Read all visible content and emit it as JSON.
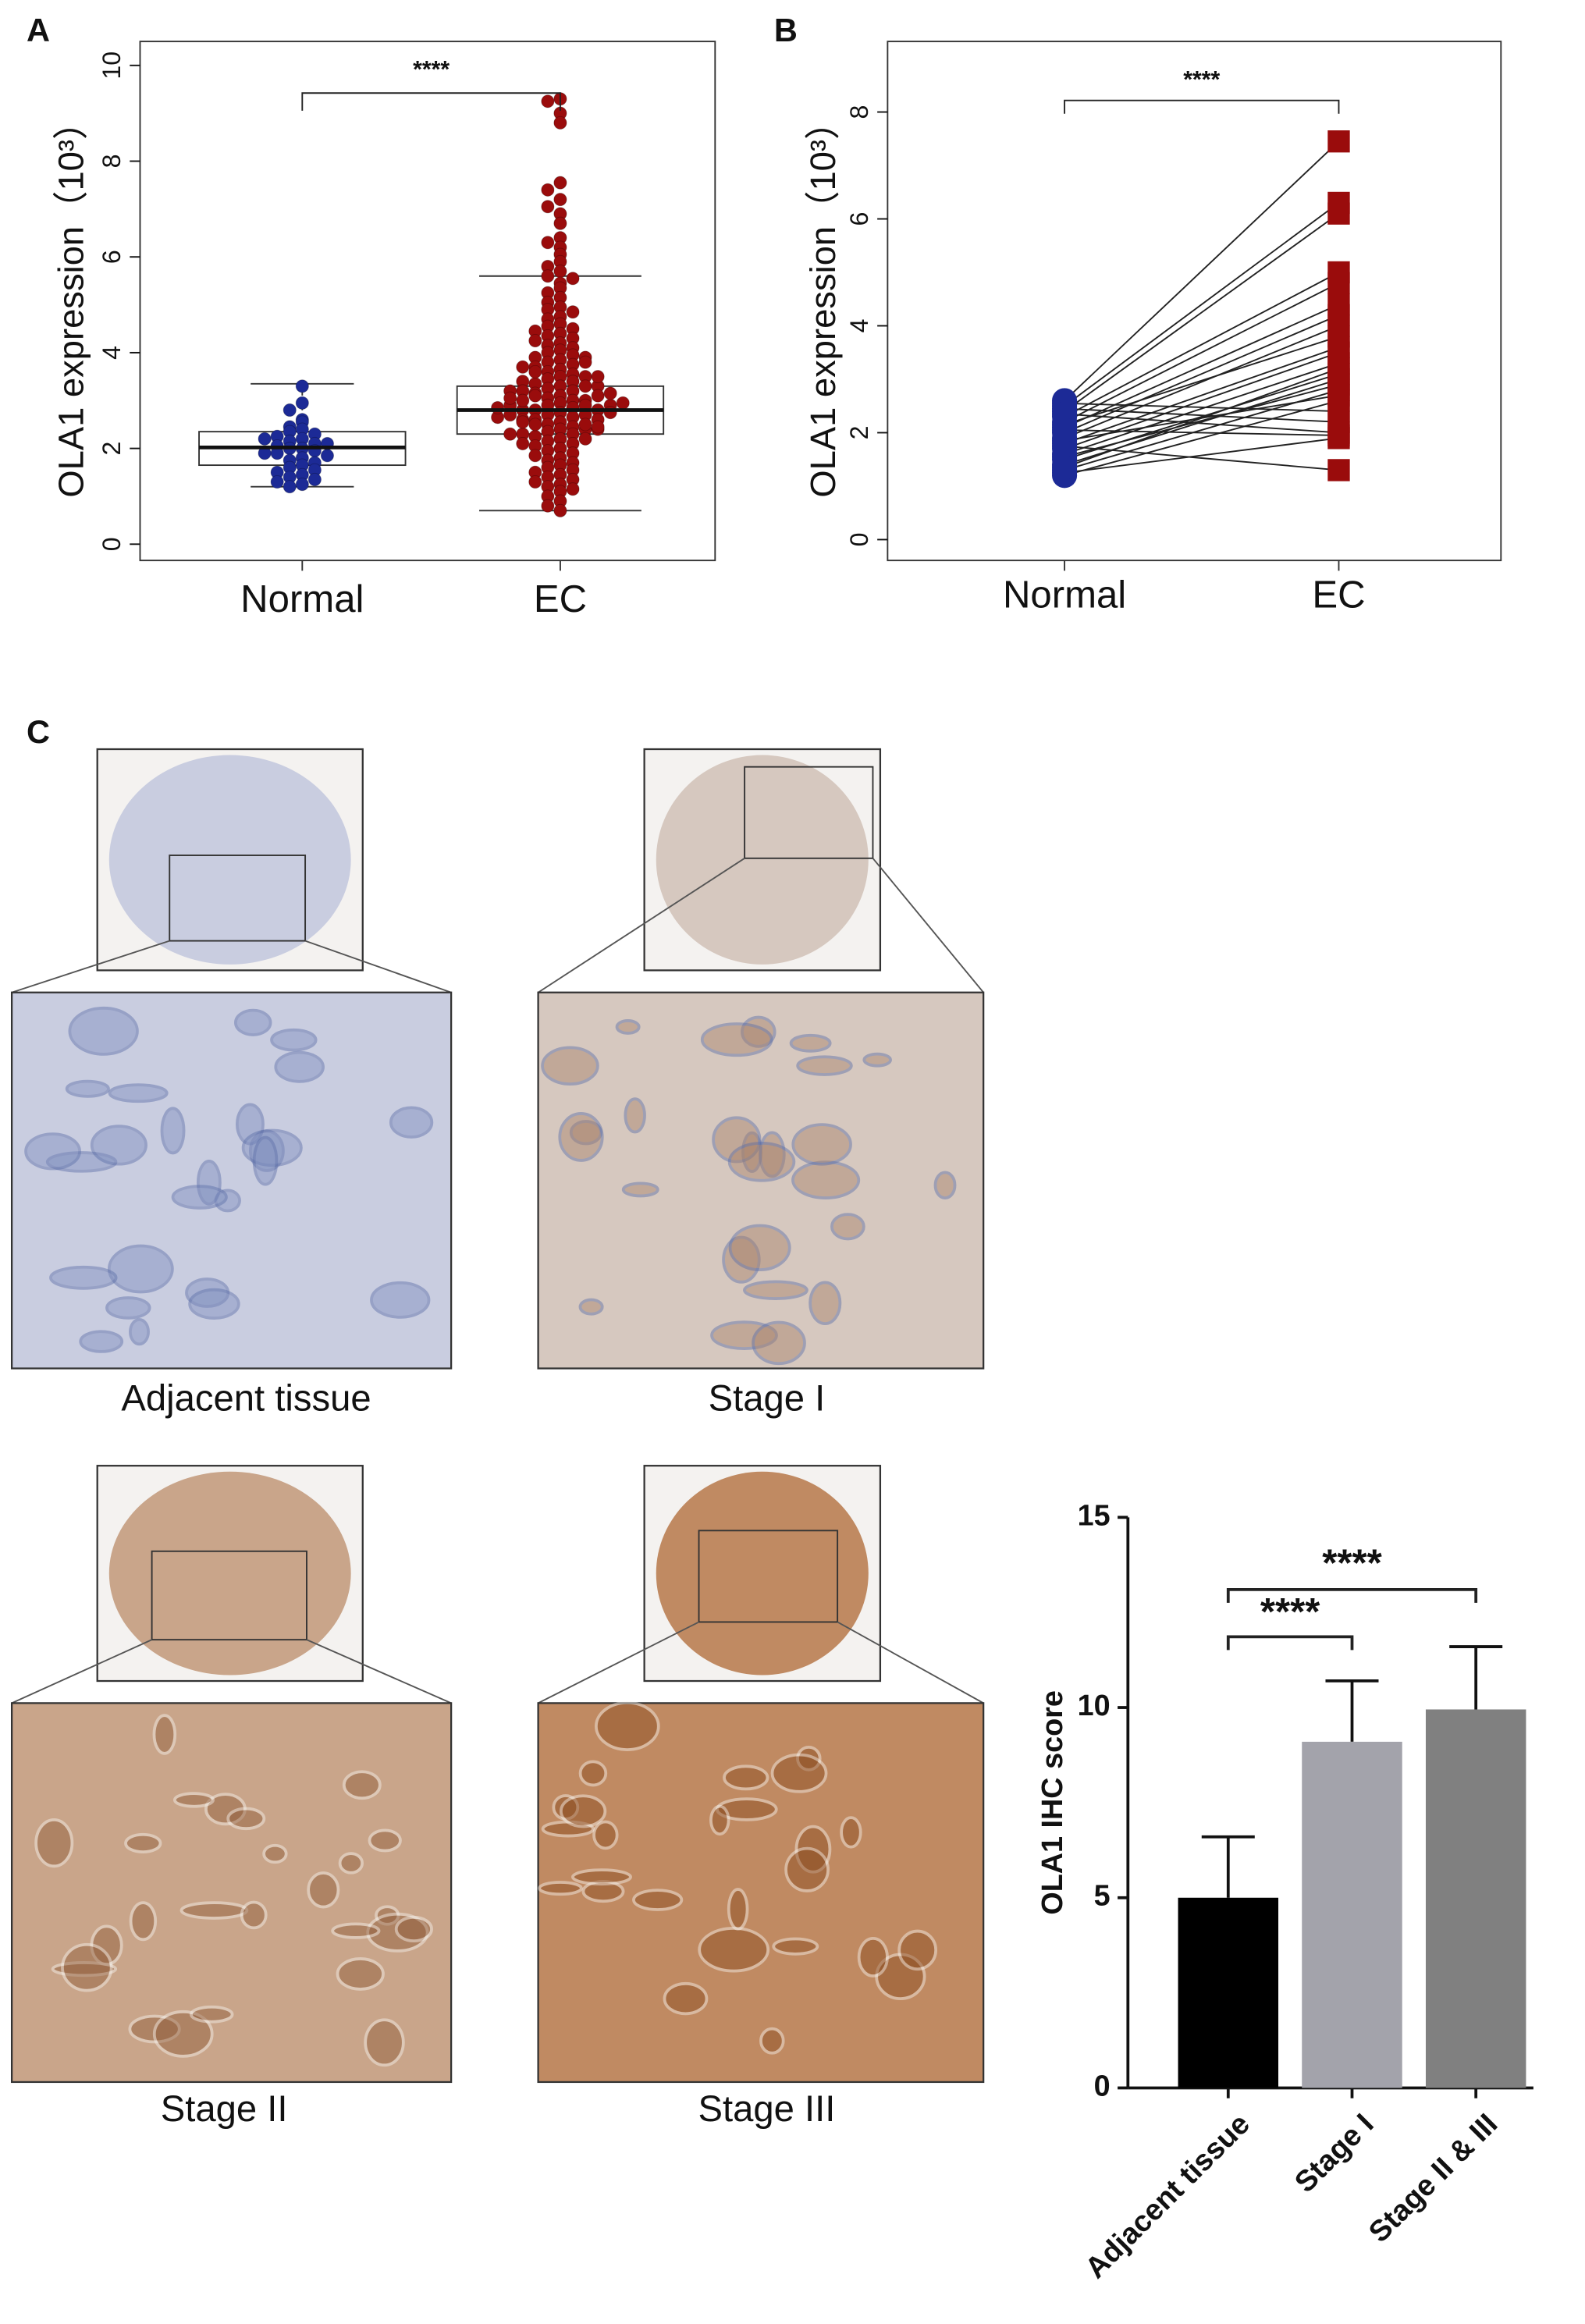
{
  "panels": [
    "A",
    "B",
    "C"
  ],
  "chart_data": [
    {
      "type": "box",
      "ylabel": "OLA1 expression（10³）",
      "categories": [
        "Normal",
        "EC"
      ],
      "colors": [
        "#1c2a96",
        "#9a0c0c"
      ],
      "box": [
        {
          "whislo": 1.2,
          "q1": 1.65,
          "med": 2.02,
          "q3": 2.35,
          "whishi": 3.35
        },
        {
          "whislo": 0.7,
          "q1": 2.3,
          "med": 2.8,
          "q3": 3.3,
          "whishi": 5.6
        }
      ],
      "points": [
        [
          3.3,
          2.95,
          2.8,
          2.6,
          2.55,
          2.45,
          2.4,
          2.35,
          2.3,
          2.25,
          2.2,
          2.15,
          2.1,
          2.05,
          2.0,
          2.0,
          1.95,
          1.9,
          1.85,
          1.8,
          1.75,
          1.7,
          1.65,
          1.6,
          1.55,
          1.5,
          1.45,
          1.4,
          1.35,
          1.3,
          1.25,
          1.2,
          2.1,
          1.9,
          2.2
        ],
        [
          9.3,
          9.25,
          9.0,
          8.8,
          7.55,
          7.4,
          7.2,
          7.05,
          6.9,
          6.7,
          6.4,
          6.3,
          6.2,
          6.05,
          5.9,
          5.8,
          5.7,
          5.6,
          5.55,
          5.45,
          5.35,
          5.25,
          5.15,
          5.05,
          4.95,
          4.9,
          4.85,
          4.75,
          4.7,
          4.6,
          4.55,
          4.5,
          4.45,
          4.4,
          4.35,
          4.3,
          4.25,
          4.2,
          4.15,
          4.1,
          4.05,
          4.0,
          3.95,
          3.9,
          3.85,
          3.8,
          3.75,
          3.7,
          3.65,
          3.6,
          3.55,
          3.5,
          3.45,
          3.4,
          3.35,
          3.3,
          3.25,
          3.2,
          3.15,
          3.1,
          3.05,
          3.0,
          2.95,
          2.9,
          2.85,
          2.8,
          2.75,
          2.7,
          2.65,
          2.6,
          2.55,
          2.5,
          2.45,
          2.4,
          2.35,
          2.3,
          2.25,
          2.2,
          2.15,
          2.1,
          2.05,
          2.0,
          1.95,
          1.9,
          1.85,
          1.8,
          1.75,
          1.7,
          1.65,
          1.6,
          1.55,
          1.5,
          1.45,
          1.4,
          1.35,
          1.3,
          1.25,
          1.2,
          1.15,
          1.1,
          1.0,
          0.9,
          0.8,
          0.7,
          3.9,
          3.8,
          3.6,
          3.5,
          3.4,
          3.3,
          3.2,
          3.1,
          3.0,
          2.9,
          2.8,
          2.7,
          2.6,
          2.5,
          2.4,
          2.3,
          2.2,
          2.1,
          3.7,
          3.3,
          3.0,
          2.8,
          2.6,
          2.4,
          3.5,
          3.2,
          2.9,
          2.7,
          2.5,
          2.3,
          3.1,
          2.9,
          2.75,
          2.65,
          2.55,
          2.85,
          3.05,
          3.15,
          2.95,
          2.45
        ]
      ],
      "ylim": [
        -0.34,
        10.5
      ],
      "yticks": [
        0,
        2,
        4,
        6,
        8,
        10
      ],
      "annotation": "****"
    },
    {
      "type": "paired",
      "ylabel": "OLA1 expression（10³）",
      "categories": [
        "Normal",
        "EC"
      ],
      "colors": [
        "#1c2a96",
        "#9a0c0c"
      ],
      "pairs": [
        [
          2.6,
          7.45
        ],
        [
          2.5,
          6.3
        ],
        [
          2.4,
          6.1
        ],
        [
          2.3,
          5.0
        ],
        [
          2.2,
          4.8
        ],
        [
          2.1,
          4.4
        ],
        [
          2.0,
          4.2
        ],
        [
          1.9,
          4.0
        ],
        [
          1.8,
          3.6
        ],
        [
          1.7,
          3.5
        ],
        [
          1.6,
          3.3
        ],
        [
          1.5,
          3.1
        ],
        [
          1.4,
          3.0
        ],
        [
          1.3,
          2.8
        ],
        [
          1.2,
          2.6
        ],
        [
          2.55,
          2.4
        ],
        [
          2.45,
          2.2
        ],
        [
          2.35,
          2.0
        ],
        [
          1.25,
          1.9
        ],
        [
          1.75,
          1.3
        ],
        [
          1.55,
          2.9
        ],
        [
          2.15,
          3.8
        ],
        [
          1.85,
          2.7
        ],
        [
          1.35,
          3.2
        ],
        [
          2.05,
          1.95
        ]
      ],
      "ylim": [
        -0.39,
        9.32
      ],
      "yticks": [
        0,
        2,
        4,
        6,
        8
      ],
      "annotation": "****"
    },
    {
      "type": "bar",
      "ylabel": "OLA1 IHC score",
      "categories": [
        "Adjacent tissue",
        "Stage I",
        "Stage II & III"
      ],
      "values": [
        5.0,
        9.1,
        9.95
      ],
      "errors": [
        1.6,
        1.6,
        1.65
      ],
      "colors": [
        "#000000",
        "#a3a3ab",
        "#808080"
      ],
      "ylim": [
        0,
        15
      ],
      "yticks": [
        0,
        5,
        10,
        15
      ],
      "annotations": [
        "****",
        "****"
      ]
    }
  ],
  "images": [
    {
      "label": "Adjacent tissue"
    },
    {
      "label": "Stage I"
    },
    {
      "label": "Stage II"
    },
    {
      "label": "Stage III"
    }
  ]
}
